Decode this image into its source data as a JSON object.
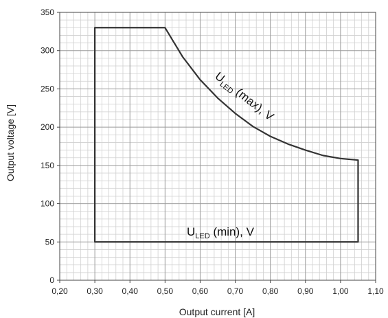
{
  "chart_data": {
    "type": "line",
    "title": "",
    "xlabel": "Output current [A]",
    "ylabel": "Output voltage [V]",
    "xlim": [
      0.2,
      1.1
    ],
    "ylim": [
      0,
      350
    ],
    "x_ticks": [
      "0,20",
      "0,30",
      "0,40",
      "0,50",
      "0,60",
      "0,70",
      "0,80",
      "0,90",
      "1,00",
      "1,10"
    ],
    "y_ticks": [
      "0",
      "50",
      "100",
      "150",
      "200",
      "250",
      "300",
      "350"
    ],
    "grid": true,
    "series": [
      {
        "name": "U_LED (max), V",
        "points": [
          [
            0.3,
            330
          ],
          [
            0.5,
            330
          ],
          [
            0.55,
            292
          ],
          [
            0.6,
            262
          ],
          [
            0.65,
            238
          ],
          [
            0.7,
            218
          ],
          [
            0.75,
            201
          ],
          [
            0.8,
            188
          ],
          [
            0.85,
            178
          ],
          [
            0.9,
            170
          ],
          [
            0.95,
            163
          ],
          [
            1.0,
            159
          ],
          [
            1.05,
            157
          ]
        ]
      },
      {
        "name": "U_LED (min), V",
        "points": [
          [
            0.3,
            50
          ],
          [
            1.05,
            50
          ]
        ]
      }
    ],
    "annotations": {
      "max": {
        "main": "U",
        "sub": "LED",
        "rest": " (max), V"
      },
      "min": {
        "main": "U",
        "sub": "LED",
        "rest": " (min), V"
      }
    }
  }
}
